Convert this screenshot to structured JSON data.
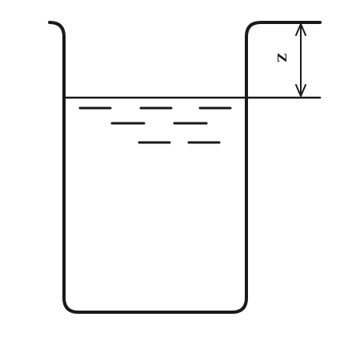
{
  "diagram": {
    "depth_label": "Z",
    "colors": {
      "ink": "#1a1a1a",
      "background": "#ffffff"
    }
  }
}
